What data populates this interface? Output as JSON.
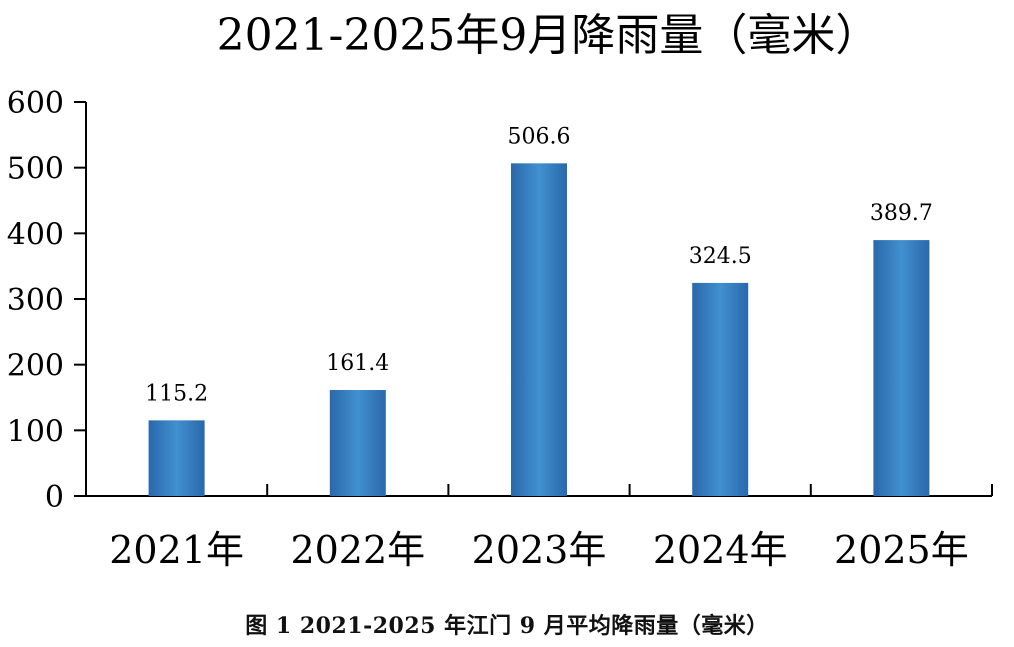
{
  "chart_data": {
    "type": "bar",
    "title": "2021-2025年9月降雨量（毫米）",
    "categories": [
      "2021年",
      "2022年",
      "2023年",
      "2024年",
      "2025年"
    ],
    "values": [
      115.2,
      161.4,
      506.6,
      324.5,
      389.7
    ],
    "data_labels": [
      "115.2",
      "161.4",
      "506.6",
      "324.5",
      "389.7"
    ],
    "y_ticks": [
      "0",
      "100",
      "200",
      "300",
      "400",
      "500",
      "600"
    ],
    "ylim": [
      0,
      600
    ],
    "xlabel": "",
    "ylabel": "",
    "grid": false,
    "legend": "none",
    "bar_color_edge": "#2a68aa",
    "bar_color_center": "#4190d0",
    "axis_color": "#000000"
  },
  "caption": "图 1 2021-2025 年江门 9 月平均降雨量（毫米）"
}
